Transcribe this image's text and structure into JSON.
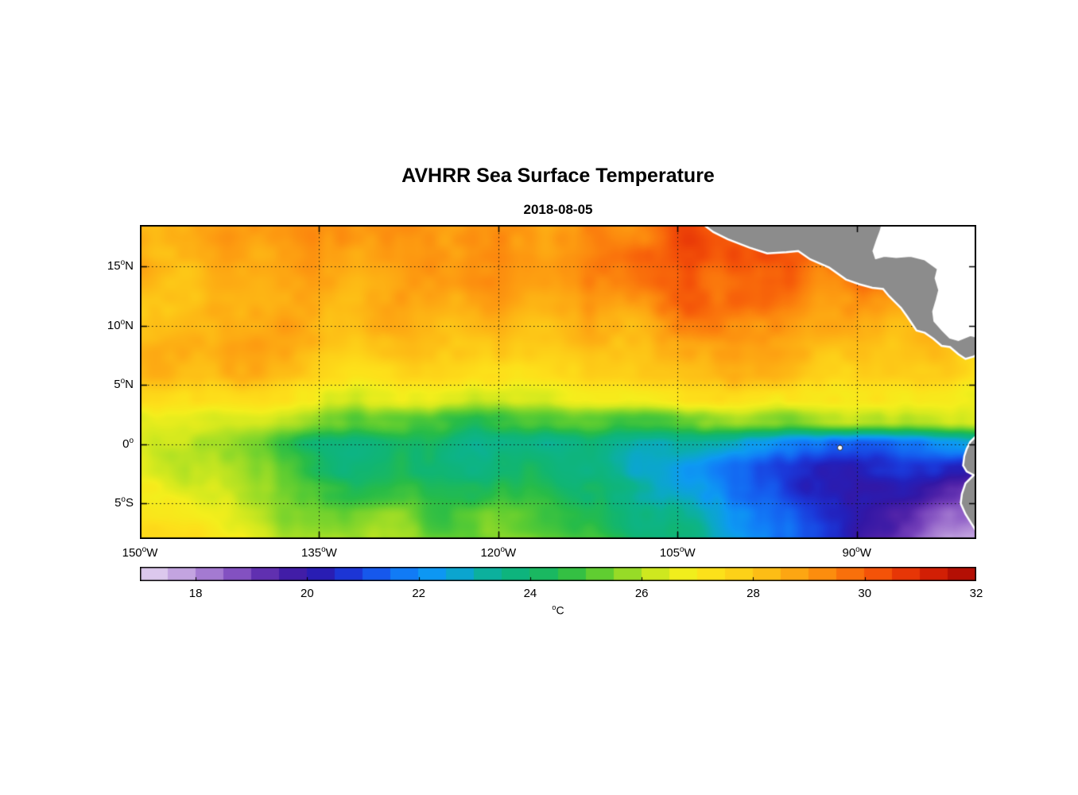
{
  "chart_data": {
    "type": "heatmap",
    "title": "AVHRR Sea Surface Temperature",
    "subtitle": "2018-08-05",
    "variable": "Sea Surface Temperature",
    "lon_range": [
      -150,
      -80
    ],
    "lat_range": [
      -8,
      18.5
    ],
    "xticks": [
      {
        "value": -150,
        "pre": "150",
        "sup": "o",
        "post": "W"
      },
      {
        "value": -135,
        "pre": "135",
        "sup": "o",
        "post": "W"
      },
      {
        "value": -120,
        "pre": "120",
        "sup": "o",
        "post": "W"
      },
      {
        "value": -105,
        "pre": "105",
        "sup": "o",
        "post": "W"
      },
      {
        "value": -90,
        "pre": "90",
        "sup": "o",
        "post": "W"
      }
    ],
    "yticks": [
      {
        "value": 15,
        "pre": "15",
        "sup": "o",
        "post": "N"
      },
      {
        "value": 10,
        "pre": "10",
        "sup": "o",
        "post": "N"
      },
      {
        "value": 5,
        "pre": "5",
        "sup": "o",
        "post": "N"
      },
      {
        "value": 0,
        "pre": "0",
        "sup": "o",
        "post": ""
      },
      {
        "value": -5,
        "pre": "5",
        "sup": "o",
        "post": "S"
      }
    ],
    "grid_on": true,
    "colorbar": {
      "min": 17,
      "max": 32,
      "step": 0.5,
      "ticks": [
        18,
        20,
        22,
        24,
        26,
        28,
        30,
        32
      ],
      "label_sup": "o",
      "label_main": "C",
      "orientation": "horizontal",
      "position": "bottom"
    },
    "colormap": [
      [
        17.0,
        "#e6d7f2"
      ],
      [
        17.5,
        "#d2b9e8"
      ],
      [
        18.0,
        "#b48fd8"
      ],
      [
        18.5,
        "#9465c9"
      ],
      [
        19.0,
        "#713db8"
      ],
      [
        19.5,
        "#4f22a8"
      ],
      [
        20.0,
        "#3317a5"
      ],
      [
        20.4,
        "#2320bb"
      ],
      [
        20.8,
        "#1b38d9"
      ],
      [
        21.3,
        "#155cee"
      ],
      [
        21.8,
        "#117ef7"
      ],
      [
        22.3,
        "#0d9af2"
      ],
      [
        22.9,
        "#0ba9c4"
      ],
      [
        23.4,
        "#0cb38c"
      ],
      [
        24.0,
        "#10b573"
      ],
      [
        24.6,
        "#27bc48"
      ],
      [
        25.2,
        "#5bcc32"
      ],
      [
        25.8,
        "#9cdc26"
      ],
      [
        26.3,
        "#d4e91e"
      ],
      [
        26.8,
        "#f4ee1c"
      ],
      [
        27.3,
        "#fde01a"
      ],
      [
        27.8,
        "#fdcf18"
      ],
      [
        28.3,
        "#fdbb15"
      ],
      [
        28.8,
        "#fda412"
      ],
      [
        29.3,
        "#fc8a0e"
      ],
      [
        29.8,
        "#f96d0b"
      ],
      [
        30.3,
        "#f35008"
      ],
      [
        30.8,
        "#e63306"
      ],
      [
        31.3,
        "#d01d05"
      ],
      [
        31.7,
        "#b81004"
      ],
      [
        32.0,
        "#a20a05"
      ]
    ],
    "grid": {
      "lons": [
        -150,
        -148,
        -146,
        -144,
        -142,
        -140,
        -138,
        -136,
        -134,
        -132,
        -130,
        -128,
        -126,
        -124,
        -122,
        -120,
        -118,
        -116,
        -114,
        -112,
        -110,
        -108,
        -106,
        -104,
        -102,
        -100,
        -98,
        -96,
        -94,
        -92,
        -90,
        -88,
        -86,
        -84,
        -82,
        -80
      ],
      "lats": [
        18,
        16,
        14,
        12,
        10,
        8,
        6,
        4,
        2,
        0,
        -2,
        -4,
        -6,
        -8
      ],
      "sst": [
        [
          28.8,
          28.6,
          28.7,
          28.9,
          28.8,
          28.6,
          28.9,
          29.0,
          28.8,
          28.7,
          29.0,
          29.2,
          29.0,
          28.8,
          29.1,
          29.3,
          29.2,
          29.0,
          29.3,
          29.6,
          29.4,
          29.7,
          30.0,
          30.3,
          30.1,
          30.4,
          30.6,
          30.3,
          30.0,
          30.2,
          29.8,
          29.6,
          29.5,
          29.4,
          29.3,
          29.2
        ],
        [
          28.5,
          28.4,
          28.6,
          28.8,
          28.6,
          28.4,
          28.6,
          28.8,
          28.7,
          28.5,
          28.8,
          29.0,
          28.8,
          28.6,
          28.9,
          29.0,
          28.8,
          28.7,
          29.0,
          29.3,
          29.5,
          29.8,
          30.1,
          30.4,
          30.2,
          30.5,
          30.3,
          30.0,
          29.7,
          29.9,
          30.1,
          29.8,
          29.5,
          29.3,
          29.1,
          29.0
        ],
        [
          28.3,
          28.2,
          28.4,
          28.6,
          28.4,
          28.3,
          28.5,
          28.7,
          28.5,
          28.3,
          28.6,
          28.8,
          28.6,
          28.4,
          28.7,
          28.8,
          28.6,
          28.5,
          28.8,
          29.0,
          29.2,
          29.5,
          29.8,
          30.0,
          29.8,
          30.1,
          29.9,
          29.6,
          29.4,
          29.6,
          29.8,
          29.5,
          29.2,
          29.0,
          28.8,
          28.7
        ],
        [
          28.2,
          28.1,
          28.3,
          28.5,
          28.3,
          28.2,
          28.4,
          28.5,
          28.3,
          28.2,
          28.4,
          28.6,
          28.4,
          28.2,
          28.5,
          28.6,
          28.4,
          28.3,
          28.5,
          28.7,
          28.9,
          29.1,
          29.6,
          29.9,
          29.7,
          30.0,
          29.7,
          29.2,
          29.0,
          29.2,
          29.4,
          29.1,
          28.9,
          28.7,
          28.6,
          28.5
        ],
        [
          28.3,
          28.4,
          28.5,
          28.3,
          28.2,
          28.4,
          28.6,
          28.4,
          28.2,
          28.0,
          28.2,
          28.4,
          28.2,
          28.0,
          28.2,
          28.3,
          28.1,
          28.0,
          28.2,
          28.4,
          28.6,
          28.8,
          29.0,
          29.3,
          29.5,
          29.3,
          29.0,
          28.8,
          28.7,
          28.9,
          29.1,
          28.8,
          28.6,
          28.5,
          28.4,
          28.4
        ],
        [
          28.7,
          28.8,
          28.6,
          28.5,
          28.7,
          28.8,
          28.6,
          28.4,
          28.2,
          28.0,
          28.1,
          28.2,
          28.0,
          27.8,
          27.9,
          28.0,
          27.8,
          27.7,
          27.9,
          28.1,
          28.2,
          28.4,
          28.5,
          28.6,
          28.5,
          28.6,
          28.5,
          28.4,
          28.3,
          28.4,
          28.5,
          28.3,
          28.2,
          28.1,
          28.0,
          28.0
        ],
        [
          28.4,
          28.5,
          28.3,
          28.2,
          28.4,
          28.5,
          28.2,
          28.0,
          27.8,
          27.6,
          27.7,
          27.8,
          27.6,
          27.4,
          27.5,
          27.6,
          27.4,
          27.3,
          27.5,
          27.7,
          27.8,
          28.0,
          28.1,
          28.2,
          28.1,
          28.2,
          28.1,
          28.0,
          27.9,
          28.0,
          28.1,
          27.9,
          27.8,
          27.7,
          27.7,
          27.6
        ],
        [
          27.6,
          27.7,
          27.5,
          27.4,
          27.5,
          27.6,
          27.3,
          27.0,
          26.8,
          26.6,
          26.7,
          26.8,
          26.6,
          26.4,
          26.5,
          26.6,
          26.4,
          26.3,
          26.5,
          26.7,
          26.8,
          27.0,
          27.1,
          27.2,
          27.1,
          27.2,
          27.1,
          27.0,
          27.0,
          27.1,
          27.2,
          27.0,
          26.9,
          26.8,
          26.8,
          26.8
        ],
        [
          26.8,
          26.9,
          26.7,
          26.6,
          26.7,
          26.6,
          26.3,
          26.0,
          25.6,
          25.2,
          25.1,
          24.9,
          24.6,
          24.4,
          24.7,
          25.0,
          25.1,
          24.9,
          25.0,
          24.9,
          24.8,
          24.9,
          24.8,
          25.0,
          25.4,
          25.9,
          25.8,
          25.7,
          25.7,
          25.8,
          25.9,
          25.8,
          25.8,
          25.8,
          26.0,
          26.2
        ],
        [
          26.4,
          26.3,
          26.2,
          26.0,
          25.8,
          25.4,
          24.8,
          24.3,
          24.0,
          23.8,
          24.0,
          24.3,
          24.1,
          23.8,
          23.6,
          23.9,
          23.6,
          23.2,
          23.4,
          23.7,
          23.5,
          23.2,
          23.0,
          23.2,
          23.0,
          22.7,
          22.4,
          22.0,
          21.6,
          21.2,
          20.9,
          21.0,
          21.4,
          21.8,
          22.2,
          22.6
        ],
        [
          26.5,
          26.4,
          26.3,
          26.1,
          25.9,
          25.6,
          25.1,
          24.7,
          24.4,
          24.2,
          24.4,
          24.6,
          24.4,
          24.1,
          24.0,
          24.2,
          23.9,
          23.6,
          23.6,
          23.8,
          23.5,
          23.1,
          22.8,
          22.5,
          22.1,
          21.7,
          21.2,
          20.8,
          20.5,
          20.2,
          20.0,
          20.2,
          20.5,
          20.8,
          20.6,
          20.4
        ],
        [
          26.8,
          26.7,
          26.6,
          26.4,
          26.2,
          25.9,
          25.5,
          25.2,
          25.0,
          24.8,
          24.9,
          25.0,
          24.8,
          24.6,
          24.5,
          24.6,
          24.4,
          24.2,
          24.1,
          24.2,
          23.9,
          23.5,
          23.1,
          22.7,
          22.3,
          21.8,
          21.4,
          20.8,
          20.3,
          20.0,
          19.8,
          19.9,
          20.1,
          19.8,
          19.4,
          19.0
        ],
        [
          27.0,
          26.9,
          26.8,
          26.7,
          26.5,
          26.2,
          25.9,
          25.6,
          25.4,
          25.2,
          25.3,
          25.4,
          25.2,
          25.0,
          24.9,
          25.0,
          24.8,
          24.6,
          24.5,
          24.6,
          24.3,
          23.9,
          23.5,
          23.1,
          22.7,
          22.2,
          21.6,
          21.2,
          20.6,
          20.2,
          19.8,
          19.5,
          19.2,
          18.8,
          18.4,
          18.0
        ],
        [
          27.3,
          27.2,
          27.1,
          27.0,
          26.8,
          26.5,
          26.2,
          25.9,
          25.7,
          25.5,
          25.6,
          25.7,
          25.5,
          25.3,
          25.2,
          25.3,
          25.1,
          24.9,
          24.8,
          24.9,
          24.6,
          24.2,
          23.8,
          23.4,
          23.0,
          22.5,
          21.9,
          21.3,
          20.7,
          20.2,
          19.7,
          19.3,
          18.9,
          18.4,
          17.9,
          17.5
        ]
      ]
    },
    "land": {
      "color": "#8c8c8c",
      "coast_color": "#ffffff",
      "mask_color": "#ffffff",
      "central_america": [
        [
          -103.2,
          18.8
        ],
        [
          -102.0,
          17.9
        ],
        [
          -100.8,
          17.3
        ],
        [
          -99.0,
          16.6
        ],
        [
          -97.5,
          16.1
        ],
        [
          -95.9,
          16.2
        ],
        [
          -94.9,
          16.3
        ],
        [
          -93.9,
          15.6
        ],
        [
          -92.3,
          14.9
        ],
        [
          -90.9,
          13.9
        ],
        [
          -89.8,
          13.5
        ],
        [
          -88.7,
          13.2
        ],
        [
          -87.8,
          13.1
        ],
        [
          -87.3,
          12.5
        ],
        [
          -86.8,
          12.0
        ],
        [
          -86.3,
          11.5
        ],
        [
          -85.8,
          10.8
        ],
        [
          -85.4,
          10.2
        ],
        [
          -85.0,
          9.6
        ],
        [
          -84.3,
          9.4
        ],
        [
          -83.6,
          8.9
        ],
        [
          -82.9,
          8.3
        ],
        [
          -82.2,
          8.2
        ],
        [
          -81.5,
          7.6
        ],
        [
          -80.9,
          7.2
        ],
        [
          -80.2,
          7.4
        ],
        [
          -79.5,
          7.8
        ],
        [
          -79.5,
          9.0
        ],
        [
          -80.5,
          9.2
        ],
        [
          -81.5,
          8.8
        ],
        [
          -82.2,
          9.0
        ],
        [
          -82.8,
          9.6
        ],
        [
          -83.5,
          10.4
        ],
        [
          -83.6,
          11.2
        ],
        [
          -83.3,
          12.2
        ],
        [
          -83.1,
          13.0
        ],
        [
          -83.4,
          14.0
        ],
        [
          -83.2,
          14.8
        ],
        [
          -84.3,
          15.6
        ],
        [
          -85.5,
          15.9
        ],
        [
          -86.7,
          15.8
        ],
        [
          -87.7,
          15.9
        ],
        [
          -88.4,
          15.7
        ],
        [
          -88.6,
          16.3
        ],
        [
          -88.3,
          17.2
        ],
        [
          -88.0,
          18.0
        ],
        [
          -87.8,
          18.8
        ]
      ],
      "caribbean_mask": [
        [
          -87.8,
          18.8
        ],
        [
          -88.0,
          18.0
        ],
        [
          -88.3,
          17.2
        ],
        [
          -88.6,
          16.3
        ],
        [
          -88.4,
          15.7
        ],
        [
          -87.7,
          15.9
        ],
        [
          -86.7,
          15.8
        ],
        [
          -85.5,
          15.9
        ],
        [
          -84.3,
          15.6
        ],
        [
          -83.2,
          14.8
        ],
        [
          -83.4,
          14.0
        ],
        [
          -83.1,
          13.0
        ],
        [
          -83.3,
          12.2
        ],
        [
          -83.6,
          11.2
        ],
        [
          -83.5,
          10.4
        ],
        [
          -82.8,
          9.6
        ],
        [
          -82.2,
          9.0
        ],
        [
          -81.5,
          8.8
        ],
        [
          -80.5,
          9.2
        ],
        [
          -79.5,
          9.0
        ],
        [
          -79.5,
          18.8
        ]
      ],
      "south_america": [
        [
          -79.5,
          0.8
        ],
        [
          -80.1,
          0.6
        ],
        [
          -80.5,
          0.2
        ],
        [
          -80.8,
          -0.4
        ],
        [
          -81.0,
          -1.0
        ],
        [
          -81.1,
          -1.8
        ],
        [
          -80.8,
          -2.3
        ],
        [
          -80.2,
          -2.6
        ],
        [
          -80.9,
          -3.3
        ],
        [
          -81.2,
          -4.2
        ],
        [
          -81.3,
          -5.0
        ],
        [
          -80.9,
          -5.9
        ],
        [
          -80.4,
          -6.7
        ],
        [
          -79.9,
          -7.5
        ],
        [
          -79.6,
          -8.3
        ],
        [
          -79.0,
          -8.3
        ],
        [
          -79.0,
          0.8
        ]
      ],
      "galapagos": {
        "lon": -91.4,
        "lat": -0.3
      }
    }
  }
}
